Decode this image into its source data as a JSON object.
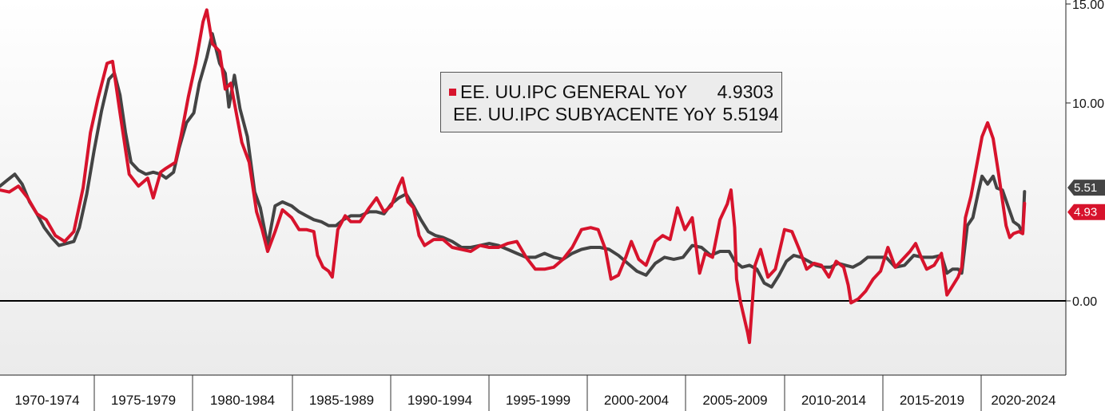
{
  "chart_data": {
    "type": "line",
    "y_ticks": [
      {
        "value": 15,
        "label": "15.00"
      },
      {
        "value": 10,
        "label": "10.00"
      },
      {
        "value": 0,
        "label": "0.00"
      }
    ],
    "ylim": [
      -3.4,
      15.2
    ],
    "xlim": [
      1969.0,
      2025.7
    ],
    "periods": [
      "1970-1974",
      "1975-1979",
      "1980-1984",
      "1985-1989",
      "1990-1994",
      "1995-1999",
      "2000-2004",
      "2005-2009",
      "2010-2014",
      "2015-2019",
      "2020-2024"
    ],
    "legend": [
      {
        "name": "EE. UU.IPC GENERAL YoY",
        "value": "4.9303",
        "color": "#d7132c"
      },
      {
        "name": "EE. UU.IPC SUBYACENTE YoY",
        "value": "5.5194",
        "color": "#444444"
      }
    ],
    "end_labels": [
      {
        "series": 1,
        "text": "5.51",
        "color": "#444444",
        "y": 5.5194
      },
      {
        "series": 0,
        "text": "4.93",
        "color": "#d7132c",
        "y": 4.9303
      }
    ],
    "series": [
      {
        "name": "EE. UU.IPC GENERAL YoY",
        "color": "#d7132c",
        "points": [
          [
            1969.0,
            5.6
          ],
          [
            1969.5,
            5.5
          ],
          [
            1970.0,
            5.8
          ],
          [
            1970.5,
            5.2
          ],
          [
            1971.0,
            4.4
          ],
          [
            1971.5,
            4.1
          ],
          [
            1972.0,
            3.3
          ],
          [
            1972.5,
            3.0
          ],
          [
            1973.0,
            3.5
          ],
          [
            1973.5,
            5.7
          ],
          [
            1973.9,
            8.5
          ],
          [
            1974.3,
            10.2
          ],
          [
            1974.8,
            12.0
          ],
          [
            1975.1,
            12.1
          ],
          [
            1975.5,
            9.5
          ],
          [
            1976.0,
            6.4
          ],
          [
            1976.5,
            5.8
          ],
          [
            1977.0,
            6.2
          ],
          [
            1977.3,
            5.2
          ],
          [
            1977.7,
            6.5
          ],
          [
            1978.0,
            6.7
          ],
          [
            1978.5,
            7.0
          ],
          [
            1978.8,
            8.3
          ],
          [
            1979.2,
            10.3
          ],
          [
            1979.6,
            12.0
          ],
          [
            1980.0,
            14.1
          ],
          [
            1980.2,
            14.7
          ],
          [
            1980.5,
            13.0
          ],
          [
            1980.9,
            12.6
          ],
          [
            1981.2,
            10.7
          ],
          [
            1981.5,
            11.0
          ],
          [
            1981.8,
            9.5
          ],
          [
            1982.1,
            8.0
          ],
          [
            1982.5,
            7.0
          ],
          [
            1982.9,
            4.5
          ],
          [
            1983.2,
            3.6
          ],
          [
            1983.5,
            2.5
          ],
          [
            1983.9,
            3.5
          ],
          [
            1984.3,
            4.6
          ],
          [
            1984.8,
            4.2
          ],
          [
            1985.2,
            3.6
          ],
          [
            1985.6,
            3.6
          ],
          [
            1986.0,
            3.5
          ],
          [
            1986.2,
            2.3
          ],
          [
            1986.5,
            1.7
          ],
          [
            1986.8,
            1.5
          ],
          [
            1987.0,
            1.2
          ],
          [
            1987.3,
            3.6
          ],
          [
            1987.7,
            4.3
          ],
          [
            1988.0,
            4.0
          ],
          [
            1988.5,
            4.0
          ],
          [
            1989.0,
            4.7
          ],
          [
            1989.4,
            5.2
          ],
          [
            1989.8,
            4.5
          ],
          [
            1990.2,
            4.8
          ],
          [
            1990.6,
            5.8
          ],
          [
            1990.8,
            6.2
          ],
          [
            1991.1,
            5.0
          ],
          [
            1991.4,
            4.7
          ],
          [
            1991.7,
            3.3
          ],
          [
            1992.0,
            2.8
          ],
          [
            1992.5,
            3.1
          ],
          [
            1993.0,
            3.1
          ],
          [
            1993.5,
            2.7
          ],
          [
            1994.0,
            2.6
          ],
          [
            1994.5,
            2.5
          ],
          [
            1995.0,
            2.8
          ],
          [
            1995.5,
            2.7
          ],
          [
            1996.0,
            2.7
          ],
          [
            1996.5,
            2.9
          ],
          [
            1997.0,
            3.0
          ],
          [
            1997.5,
            2.2
          ],
          [
            1998.0,
            1.6
          ],
          [
            1998.5,
            1.6
          ],
          [
            1999.0,
            1.7
          ],
          [
            1999.5,
            2.1
          ],
          [
            2000.0,
            2.7
          ],
          [
            2000.5,
            3.6
          ],
          [
            2001.0,
            3.7
          ],
          [
            2001.4,
            3.6
          ],
          [
            2001.8,
            2.6
          ],
          [
            2002.1,
            1.1
          ],
          [
            2002.5,
            1.3
          ],
          [
            2002.9,
            2.2
          ],
          [
            2003.2,
            3.0
          ],
          [
            2003.6,
            2.1
          ],
          [
            2004.0,
            1.8
          ],
          [
            2004.5,
            3.0
          ],
          [
            2004.9,
            3.3
          ],
          [
            2005.3,
            3.1
          ],
          [
            2005.7,
            4.7
          ],
          [
            2006.1,
            3.6
          ],
          [
            2006.5,
            4.2
          ],
          [
            2006.9,
            1.4
          ],
          [
            2007.2,
            2.4
          ],
          [
            2007.6,
            2.2
          ],
          [
            2008.0,
            4.1
          ],
          [
            2008.4,
            4.9
          ],
          [
            2008.6,
            5.6
          ],
          [
            2008.8,
            3.7
          ],
          [
            2008.9,
            1.1
          ],
          [
            2009.1,
            0.0
          ],
          [
            2009.5,
            -1.6
          ],
          [
            2009.6,
            -2.1
          ],
          [
            2009.9,
            1.8
          ],
          [
            2010.2,
            2.6
          ],
          [
            2010.6,
            1.2
          ],
          [
            2011.0,
            1.6
          ],
          [
            2011.5,
            3.6
          ],
          [
            2011.9,
            3.5
          ],
          [
            2012.3,
            2.6
          ],
          [
            2012.7,
            1.6
          ],
          [
            2013.1,
            1.9
          ],
          [
            2013.5,
            1.8
          ],
          [
            2013.9,
            1.2
          ],
          [
            2014.3,
            2.0
          ],
          [
            2014.7,
            1.7
          ],
          [
            2014.95,
            0.8
          ],
          [
            2015.1,
            -0.1
          ],
          [
            2015.5,
            0.1
          ],
          [
            2015.9,
            0.5
          ],
          [
            2016.3,
            1.1
          ],
          [
            2016.7,
            1.5
          ],
          [
            2017.1,
            2.7
          ],
          [
            2017.5,
            1.7
          ],
          [
            2017.9,
            2.1
          ],
          [
            2018.3,
            2.5
          ],
          [
            2018.6,
            2.9
          ],
          [
            2018.9,
            2.2
          ],
          [
            2019.2,
            1.6
          ],
          [
            2019.6,
            1.8
          ],
          [
            2020.0,
            2.4
          ],
          [
            2020.3,
            0.3
          ],
          [
            2020.5,
            0.6
          ],
          [
            2020.9,
            1.2
          ],
          [
            2021.1,
            1.7
          ],
          [
            2021.3,
            4.2
          ],
          [
            2021.6,
            5.3
          ],
          [
            2021.9,
            6.8
          ],
          [
            2022.2,
            8.3
          ],
          [
            2022.5,
            9.0
          ],
          [
            2022.8,
            8.2
          ],
          [
            2023.1,
            6.4
          ],
          [
            2023.5,
            3.8
          ],
          [
            2023.7,
            3.2
          ],
          [
            2023.9,
            3.4
          ],
          [
            2024.2,
            3.5
          ],
          [
            2024.4,
            3.4
          ],
          [
            2024.5,
            4.9303
          ]
        ]
      },
      {
        "name": "EE. UU.IPC SUBYACENTE YoY",
        "color": "#444444",
        "points": [
          [
            1969.0,
            5.8
          ],
          [
            1969.4,
            6.1
          ],
          [
            1969.8,
            6.4
          ],
          [
            1970.2,
            5.9
          ],
          [
            1970.6,
            5.0
          ],
          [
            1971.0,
            4.4
          ],
          [
            1971.4,
            3.7
          ],
          [
            1971.8,
            3.2
          ],
          [
            1972.2,
            2.8
          ],
          [
            1972.6,
            2.9
          ],
          [
            1973.0,
            3.0
          ],
          [
            1973.3,
            3.7
          ],
          [
            1973.7,
            5.4
          ],
          [
            1974.1,
            7.6
          ],
          [
            1974.5,
            9.6
          ],
          [
            1974.9,
            11.2
          ],
          [
            1975.2,
            11.5
          ],
          [
            1975.5,
            10.4
          ],
          [
            1975.8,
            8.5
          ],
          [
            1976.1,
            7.0
          ],
          [
            1976.5,
            6.6
          ],
          [
            1976.9,
            6.4
          ],
          [
            1977.3,
            6.5
          ],
          [
            1977.7,
            6.4
          ],
          [
            1978.0,
            6.2
          ],
          [
            1978.4,
            6.5
          ],
          [
            1978.7,
            7.7
          ],
          [
            1979.1,
            9.0
          ],
          [
            1979.5,
            9.5
          ],
          [
            1979.8,
            11.0
          ],
          [
            1980.2,
            12.3
          ],
          [
            1980.5,
            13.5
          ],
          [
            1980.9,
            12.0
          ],
          [
            1981.2,
            11.5
          ],
          [
            1981.4,
            9.8
          ],
          [
            1981.7,
            11.4
          ],
          [
            1982.0,
            9.7
          ],
          [
            1982.4,
            8.3
          ],
          [
            1982.8,
            5.5
          ],
          [
            1983.1,
            4.7
          ],
          [
            1983.5,
            2.8
          ],
          [
            1983.9,
            4.8
          ],
          [
            1984.3,
            5.0
          ],
          [
            1984.8,
            4.8
          ],
          [
            1985.2,
            4.5
          ],
          [
            1985.6,
            4.3
          ],
          [
            1986.0,
            4.1
          ],
          [
            1986.4,
            4.0
          ],
          [
            1986.8,
            3.8
          ],
          [
            1987.2,
            3.8
          ],
          [
            1987.6,
            4.1
          ],
          [
            1988.0,
            4.3
          ],
          [
            1988.5,
            4.3
          ],
          [
            1989.0,
            4.5
          ],
          [
            1989.4,
            4.5
          ],
          [
            1989.8,
            4.4
          ],
          [
            1990.2,
            4.9
          ],
          [
            1990.6,
            5.2
          ],
          [
            1991.0,
            5.4
          ],
          [
            1991.4,
            4.8
          ],
          [
            1991.8,
            4.1
          ],
          [
            1992.2,
            3.5
          ],
          [
            1992.6,
            3.3
          ],
          [
            1993.0,
            3.2
          ],
          [
            1993.5,
            3.0
          ],
          [
            1994.0,
            2.7
          ],
          [
            1994.5,
            2.7
          ],
          [
            1995.0,
            2.8
          ],
          [
            1995.5,
            2.9
          ],
          [
            1996.0,
            2.8
          ],
          [
            1996.5,
            2.6
          ],
          [
            1997.0,
            2.4
          ],
          [
            1997.5,
            2.2
          ],
          [
            1998.0,
            2.2
          ],
          [
            1998.5,
            2.4
          ],
          [
            1999.0,
            2.2
          ],
          [
            1999.5,
            2.1
          ],
          [
            2000.0,
            2.4
          ],
          [
            2000.5,
            2.6
          ],
          [
            2001.0,
            2.7
          ],
          [
            2001.5,
            2.7
          ],
          [
            2002.0,
            2.6
          ],
          [
            2002.5,
            2.3
          ],
          [
            2003.0,
            1.9
          ],
          [
            2003.5,
            1.5
          ],
          [
            2004.0,
            1.3
          ],
          [
            2004.5,
            1.9
          ],
          [
            2005.0,
            2.2
          ],
          [
            2005.5,
            2.1
          ],
          [
            2006.0,
            2.2
          ],
          [
            2006.5,
            2.8
          ],
          [
            2007.0,
            2.7
          ],
          [
            2007.5,
            2.3
          ],
          [
            2008.0,
            2.5
          ],
          [
            2008.5,
            2.5
          ],
          [
            2008.8,
            2.0
          ],
          [
            2009.2,
            1.7
          ],
          [
            2009.6,
            1.8
          ],
          [
            2010.0,
            1.6
          ],
          [
            2010.4,
            0.9
          ],
          [
            2010.8,
            0.7
          ],
          [
            2011.2,
            1.3
          ],
          [
            2011.6,
            2.0
          ],
          [
            2012.0,
            2.3
          ],
          [
            2012.4,
            2.2
          ],
          [
            2012.8,
            2.0
          ],
          [
            2013.2,
            1.8
          ],
          [
            2013.6,
            1.7
          ],
          [
            2014.0,
            1.7
          ],
          [
            2014.4,
            1.9
          ],
          [
            2014.8,
            1.8
          ],
          [
            2015.2,
            1.7
          ],
          [
            2015.6,
            1.9
          ],
          [
            2016.0,
            2.2
          ],
          [
            2016.5,
            2.2
          ],
          [
            2017.0,
            2.2
          ],
          [
            2017.5,
            1.7
          ],
          [
            2018.0,
            1.8
          ],
          [
            2018.5,
            2.3
          ],
          [
            2019.0,
            2.2
          ],
          [
            2019.5,
            2.2
          ],
          [
            2020.0,
            2.3
          ],
          [
            2020.3,
            1.4
          ],
          [
            2020.6,
            1.6
          ],
          [
            2020.9,
            1.6
          ],
          [
            2021.1,
            1.4
          ],
          [
            2021.4,
            3.8
          ],
          [
            2021.7,
            4.2
          ],
          [
            2022.0,
            5.5
          ],
          [
            2022.2,
            6.3
          ],
          [
            2022.5,
            5.9
          ],
          [
            2022.8,
            6.3
          ],
          [
            2023.0,
            5.7
          ],
          [
            2023.3,
            5.6
          ],
          [
            2023.6,
            4.8
          ],
          [
            2023.9,
            4.0
          ],
          [
            2024.2,
            3.8
          ],
          [
            2024.4,
            3.4
          ],
          [
            2024.5,
            5.5194
          ]
        ]
      }
    ]
  }
}
